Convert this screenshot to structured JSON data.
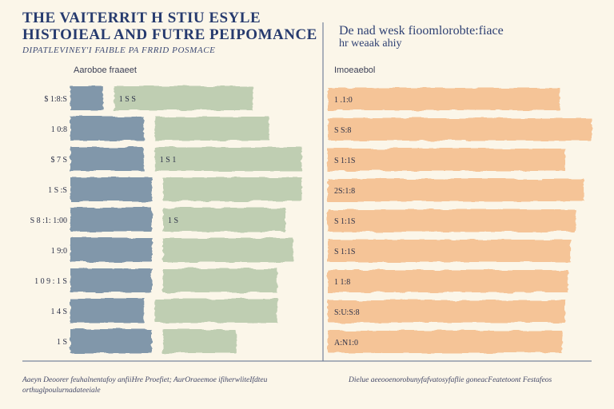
{
  "header": {
    "title_line1": "THE VAITERRIT H STIU ESYLE",
    "title_line2": "HISTOIEAL AND FUTRE PEIPOMANCE",
    "subtitle": "DIPATLEVINEY'I FAIBLE PA FRRID POSMACE"
  },
  "right_header": {
    "line1": "De nad wesk fioomlorobte:fiace",
    "line2": "hr weaak ahiy"
  },
  "left_panel": {
    "label": "Aaroboe fraaeet"
  },
  "right_panel": {
    "label": "Imoeaebol"
  },
  "footer": {
    "left_line1": "Aaeyn Deoorer feuhalnentafoy anfiiHre Proefiet; AurOraeemoe ifiherwliteIfdteu",
    "left_line2": "orthuglpoulurnadateeiale",
    "right_line1": "Dielue aeeooenorobunyfafvatosyfaflie goneacFeatetoont Festafeos"
  },
  "chart_data": [
    {
      "type": "bar",
      "series": [
        {
          "name": "",
          "color": "#5e7d99",
          "tick_labels": [
            "$ 1:8:S",
            "1 0:8",
            "$ 7 S",
            "1 S :S",
            "S 8 :1: 1:00",
            "1 9:0",
            "1 0 9 : 1 S",
            "1 4 S",
            "1 S"
          ],
          "values": [
            4,
            9,
            9,
            10,
            10,
            10,
            10,
            9,
            10
          ]
        },
        {
          "name": "",
          "color": "#8fae86",
          "tick_labels": [
            "1 S S",
            "",
            "1 S 1",
            "",
            "1 S",
            "",
            "",
            "",
            ""
          ],
          "values": [
            17,
            14,
            18,
            17,
            15,
            16,
            14,
            15,
            9
          ]
        }
      ]
    },
    {
      "type": "bar",
      "series": [
        {
          "name": "",
          "color": "#f2a766",
          "tick_labels": [
            "1 .1:0",
            "S S:8",
            "S 1:1S",
            "2S:1:8",
            "S 1:1S",
            "S 1:1S",
            "1 1:8",
            "S:U:S:8",
            "A:N1:0"
          ],
          "values": [
            88,
            100,
            90,
            97,
            94,
            92,
            91,
            90,
            89
          ]
        }
      ]
    }
  ]
}
